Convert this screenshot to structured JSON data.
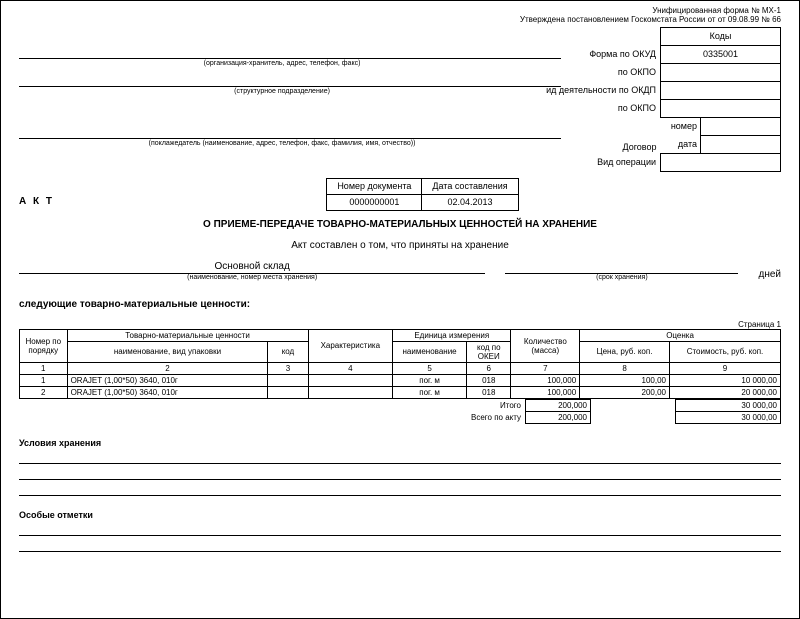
{
  "meta": {
    "form_line": "Унифицированная форма № МХ-1",
    "approved_line": "Утверждена постановлением Госкомстата России от от 09.08.99 № 66"
  },
  "codes": {
    "header": "Коды",
    "okud_label": "Форма по ОКУД",
    "okud_value": "0335001",
    "okpo1_label": "по ОКПО",
    "okpo1_value": "",
    "okdp_label": "ид деятельности по ОКДП",
    "okdp_value": "",
    "okpo2_label": "по ОКПО",
    "okpo2_value": "",
    "contract_label": "Договор",
    "contract_number_label": "номер",
    "contract_number": "",
    "contract_date_label": "дата",
    "contract_date": "",
    "operation_label": "Вид операции",
    "operation_value": ""
  },
  "captions": {
    "org": "(организация-хранитель, адрес, телефон, факс)",
    "struct": "(структурное подразделение)",
    "depositor": "(поклажедатель (наименование, адрес, телефон, факс, фамилия, имя, отчество))"
  },
  "doc_head": {
    "akt": "А К Т",
    "num_label": "Номер документа",
    "date_label": "Дата составления",
    "num_value": "0000000001",
    "date_value": "02.04.2013",
    "title": "О ПРИЕМЕ-ПЕРЕДАЧЕ ТОВАРНО-МАТЕРИАЛЬНЫХ ЦЕННОСТЕЙ НА ХРАНЕНИЕ",
    "statement": "Акт составлен о том, что приняты на хранение"
  },
  "warehouse": {
    "name": "Основной склад",
    "name_caption": "(наименование, номер места хранения)",
    "term": "",
    "term_caption": "(срок хранения)",
    "days": "дней"
  },
  "following": "следующие товарно-материальные ценности:",
  "page_marker": "Страница 1",
  "table": {
    "headers": {
      "num": "Номер по порядку",
      "tmc": "Товарно-материальные ценности",
      "name_pack": "наименование, вид упаковки",
      "code": "код",
      "char": "Характеристика",
      "unit": "Единица измерения",
      "unit_name": "наименование",
      "unit_code": "код по ОКЕИ",
      "qty": "Количество (масса)",
      "eval": "Оценка",
      "price": "Цена, руб. коп.",
      "cost": "Стоимость, руб. коп."
    },
    "colnums": [
      "1",
      "2",
      "3",
      "4",
      "5",
      "6",
      "7",
      "8",
      "9"
    ],
    "rows": [
      {
        "num": "1",
        "name": "ORAJET (1,00*50) 3640, 010г",
        "code": "",
        "char": "",
        "unit_name": "пог. м",
        "unit_code": "018",
        "qty": "100,000",
        "price": "100,00",
        "cost": "10 000,00"
      },
      {
        "num": "2",
        "name": "ORAJET (1,00*50) 3640, 010г",
        "code": "",
        "char": "",
        "unit_name": "пог. м",
        "unit_code": "018",
        "qty": "100,000",
        "price": "200,00",
        "cost": "20 000,00"
      }
    ],
    "totals": {
      "itogo_label": "Итого",
      "itogo_qty": "200,000",
      "itogo_cost": "30 000,00",
      "vsego_label": "Всего по акту",
      "vsego_qty": "200,000",
      "vsego_cost": "30 000,00"
    },
    "col_widths": {
      "num": "45px",
      "name": "190px",
      "code": "38px",
      "char": "80px",
      "unit_name": "70px",
      "unit_code": "42px",
      "qty": "65px",
      "price": "85px",
      "cost": "105px"
    }
  },
  "sections": {
    "storage": "Условия хранения",
    "notes": "Особые отметки"
  }
}
